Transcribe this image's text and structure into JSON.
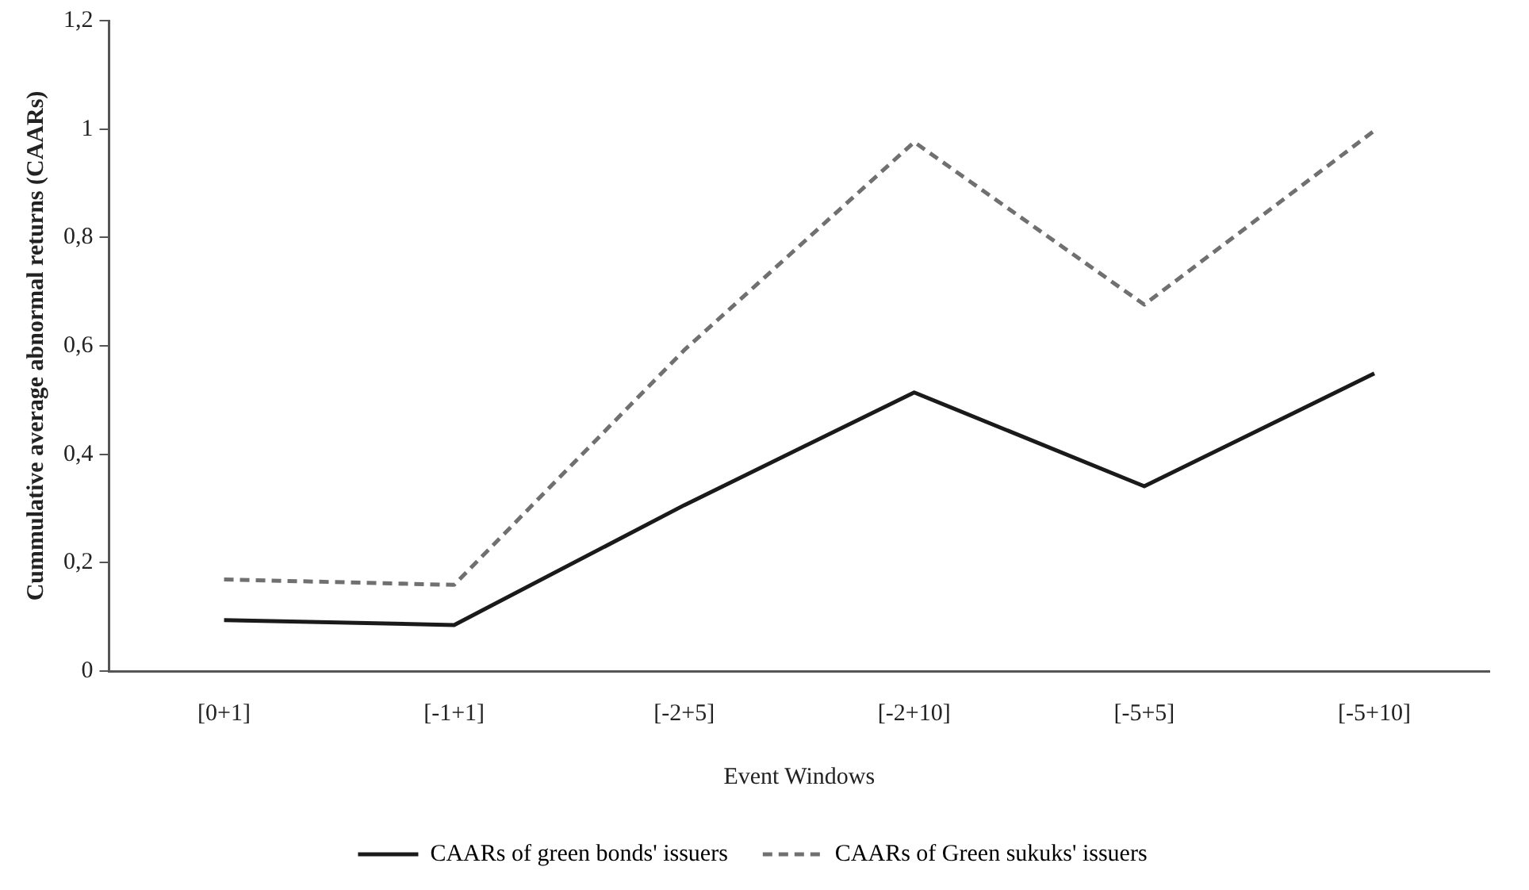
{
  "chart_data": {
    "type": "line",
    "xlabel": "Event Windows",
    "ylabel": "Cummulative average abnormal returns (CAARs)",
    "categories": [
      "[0+1]",
      "[-1+1]",
      "[-2+5]",
      "[-2+10]",
      "[-5+5]",
      "[-5+10]"
    ],
    "series": [
      {
        "name": "CAARs of green bonds' issuers",
        "color": "#1a1a1a",
        "line_style": "solid",
        "values": [
          0.094,
          0.085,
          0.306,
          0.514,
          0.341,
          0.549
        ]
      },
      {
        "name": "CAARs of Green sukuks' issuers",
        "color": "#707070",
        "line_style": "dashed",
        "values": [
          0.169,
          0.159,
          0.592,
          0.976,
          0.676,
          0.997
        ]
      }
    ],
    "ylim": [
      0,
      1.2
    ],
    "yticks": [
      0,
      {
        "value": 0.2,
        "label": "0,2"
      },
      {
        "value": 0.4,
        "label": "0,4"
      },
      {
        "value": 0.6,
        "label": "0,6"
      },
      {
        "value": 0.8,
        "label": "0,8"
      },
      1,
      {
        "value": 1.2,
        "label": "1,2"
      }
    ],
    "grid": false,
    "legend": "bottom",
    "marker": "none"
  }
}
